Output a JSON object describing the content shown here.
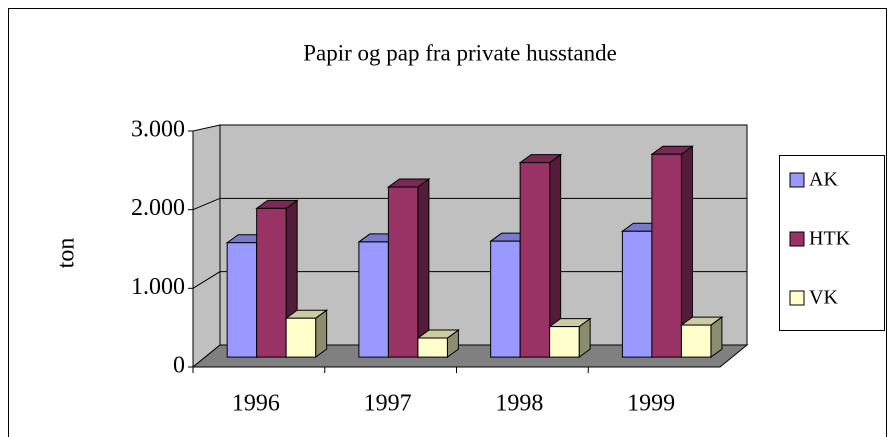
{
  "chart_data": {
    "type": "bar",
    "title": "Papir og pap fra private husstande",
    "y_label": "ton",
    "categories": [
      "1996",
      "1997",
      "1998",
      "1999"
    ],
    "series": [
      {
        "name": "AK",
        "color": "#9999ff",
        "values": [
          1500,
          1510,
          1520,
          1650
        ]
      },
      {
        "name": "HTK",
        "color": "#993366",
        "values": [
          1950,
          2230,
          2550,
          2660
        ]
      },
      {
        "name": "VK",
        "color": "#ffffcc",
        "values": [
          510,
          250,
          400,
          420
        ]
      }
    ],
    "ylim": [
      0,
      3000
    ],
    "yticks": [
      0,
      {
        "value": 1000,
        "label": "1.000"
      },
      {
        "value": 2000,
        "label": "2.000"
      },
      {
        "value": 3000,
        "label": "3.000"
      }
    ],
    "grid": true,
    "legend": "right"
  }
}
